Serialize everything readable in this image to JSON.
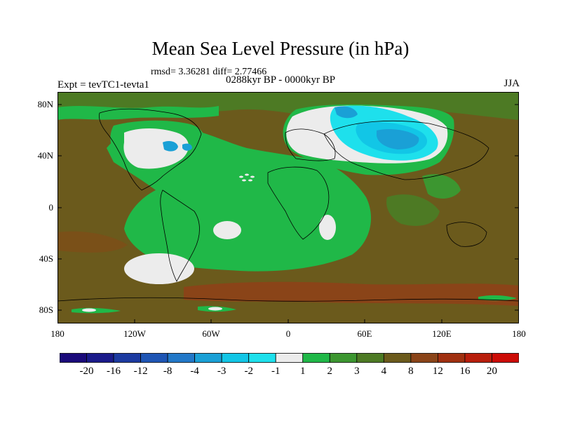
{
  "figure": {
    "title": "Mean Sea Level Pressure (in hPa)",
    "stats": "rmsd= 3.36281 diff= 2.77466",
    "subtitle": "0288kyr BP - 0000kyr BP",
    "experiment": "Expt = tevTC1-tevta1",
    "season": "JJA"
  },
  "axes": {
    "lat_labels": [
      "80N",
      "40N",
      "0",
      "40S",
      "80S"
    ],
    "lon_labels": [
      "180",
      "120W",
      "60W",
      "0",
      "60E",
      "120E",
      "180"
    ]
  },
  "colorbar": {
    "labels": [
      "-20",
      "-16",
      "-12",
      "-8",
      "-4",
      "-3",
      "-2",
      "-1",
      "1",
      "2",
      "3",
      "4",
      "8",
      "12",
      "16",
      "20"
    ],
    "colors": [
      "#1a0a7a",
      "#1a1a8a",
      "#1c3aa0",
      "#1e55b4",
      "#2278c8",
      "#1aa0d6",
      "#12c6e6",
      "#1ee0ec",
      "#ececec",
      "#20b848",
      "#3c9630",
      "#4d7a24",
      "#6b5a1c",
      "#8a4418",
      "#a03010",
      "#b81e0c",
      "#cc0c06"
    ]
  },
  "palette": {
    "ocean_brown": "#6b5a1c",
    "olive": "#4d7a24",
    "mid_green": "#3c9630",
    "bright_green": "#20b848",
    "white": "#ececec",
    "cyan": "#1ee0ec",
    "mid_blue": "#12c6e6",
    "blue": "#1aa0d6",
    "red_brown": "#8a4418"
  }
}
